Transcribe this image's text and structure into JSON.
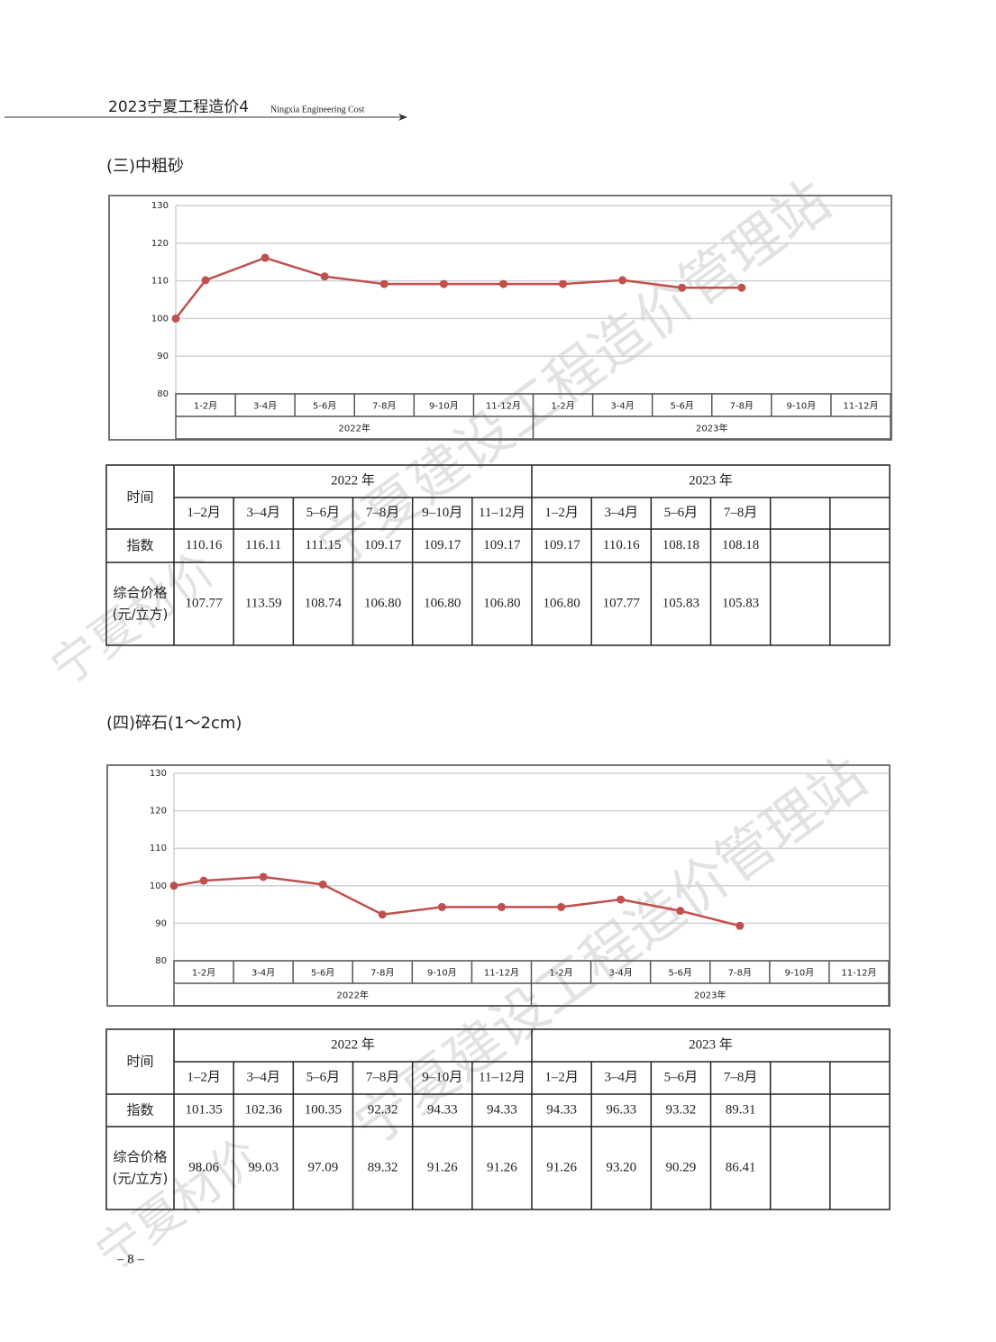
{
  "header": {
    "title": "2023宁夏工程造价4",
    "subtitle": "Ningxia Engineering Cost"
  },
  "sections": [
    {
      "title": "(三)中粗砂"
    },
    {
      "title": "(四)碎石(1～2cm)"
    }
  ],
  "chart_data": [
    {
      "type": "line",
      "categories": [
        "1-2月",
        "3-4月",
        "5-6月",
        "7-8月",
        "9-10月",
        "11-12月",
        "1-2月",
        "3-4月",
        "5-6月",
        "7-8月",
        "9-10月",
        "11-12月"
      ],
      "groups": [
        "2022年",
        "2023年"
      ],
      "start_value": 100,
      "series": [
        {
          "color": "#c0504d",
          "values": [
            110.16,
            116.11,
            111.15,
            109.17,
            109.17,
            109.17,
            109.17,
            110.16,
            108.18,
            108.18,
            null,
            null
          ]
        }
      ],
      "ylim": [
        80,
        130
      ],
      "yticks": [
        80,
        90,
        100,
        110,
        120,
        130
      ],
      "grid": true
    },
    {
      "type": "line",
      "categories": [
        "1-2月",
        "3-4月",
        "5-6月",
        "7-8月",
        "9-10月",
        "11-12月",
        "1-2月",
        "3-4月",
        "5-6月",
        "7-8月",
        "9-10月",
        "11-12月"
      ],
      "groups": [
        "2022年",
        "2023年"
      ],
      "start_value": 100,
      "series": [
        {
          "color": "#c0504d",
          "values": [
            101.35,
            102.36,
            100.35,
            92.32,
            94.33,
            94.33,
            94.33,
            96.33,
            93.32,
            89.31,
            null,
            null
          ]
        }
      ],
      "ylim": [
        80,
        130
      ],
      "yticks": [
        80,
        90,
        100,
        110,
        120,
        130
      ],
      "grid": true
    }
  ],
  "tables": [
    {
      "corner": "时间",
      "groups": [
        "2022 年",
        "2023 年"
      ],
      "periods": [
        "1–2月",
        "3–4月",
        "5–6月",
        "7–8月",
        "9–10月",
        "11–12月",
        "1–2月",
        "3–4月",
        "5–6月",
        "7–8月",
        null,
        null
      ],
      "rows": [
        {
          "label": [
            "指数"
          ],
          "cells": [
            "110.16",
            "116.11",
            "111.15",
            "109.17",
            "109.17",
            "109.17",
            "109.17",
            "110.16",
            "108.18",
            "108.18",
            null,
            null
          ]
        },
        {
          "label": [
            "综合价格",
            "(元/立方)"
          ],
          "cells": [
            "107.77",
            "113.59",
            "108.74",
            "106.80",
            "106.80",
            "106.80",
            "106.80",
            "107.77",
            "105.83",
            "105.83",
            null,
            null
          ]
        }
      ]
    },
    {
      "corner": "时间",
      "groups": [
        "2022 年",
        "2023 年"
      ],
      "periods": [
        "1–2月",
        "3–4月",
        "5–6月",
        "7–8月",
        "9–10月",
        "11–12月",
        "1–2月",
        "3–4月",
        "5–6月",
        "7–8月",
        null,
        null
      ],
      "rows": [
        {
          "label": [
            "指数"
          ],
          "cells": [
            "101.35",
            "102.36",
            "100.35",
            "92.32",
            "94.33",
            "94.33",
            "94.33",
            "96.33",
            "93.32",
            "89.31",
            null,
            null
          ]
        },
        {
          "label": [
            "综合价格",
            "(元/立方)"
          ],
          "cells": [
            "98.06",
            "99.03",
            "97.09",
            "89.32",
            "91.26",
            "91.26",
            "91.26",
            "93.20",
            "90.29",
            "86.41",
            null,
            null
          ]
        }
      ]
    }
  ],
  "watermark": [
    "宁夏建设工程造价管理站",
    "宁夏材价"
  ],
  "page_number": "– 8 –"
}
